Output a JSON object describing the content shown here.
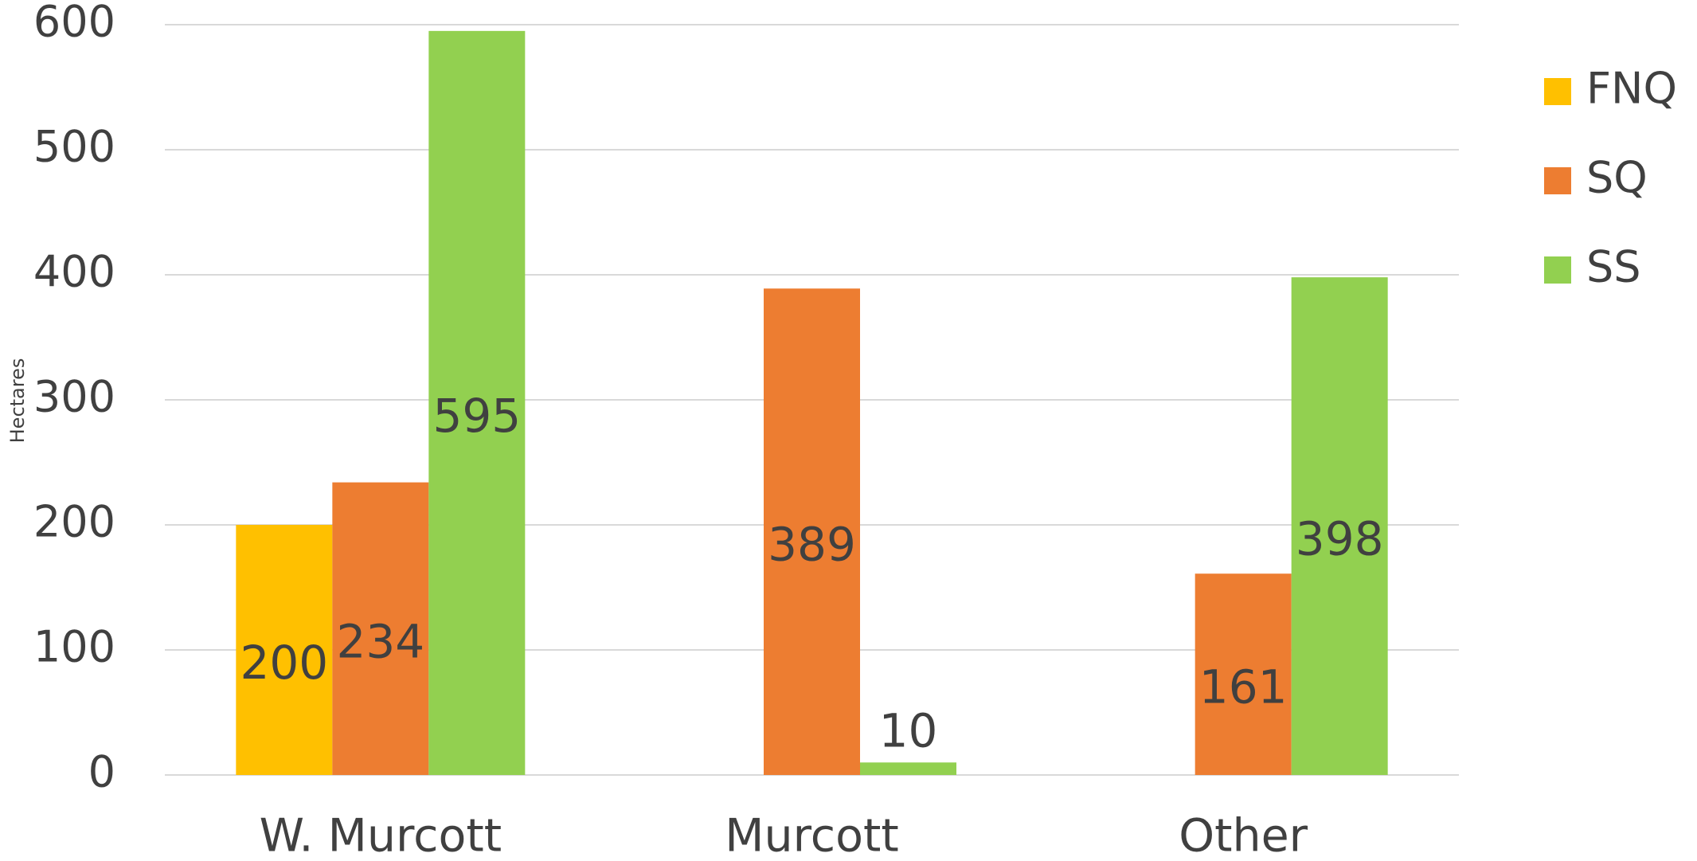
{
  "chart_data": {
    "type": "bar",
    "y_label": "Hectares",
    "categories": [
      "W. Murcott",
      "Murcott",
      "Other"
    ],
    "series": [
      {
        "name": "FNQ",
        "color": "#ffc000",
        "values": [
          200,
          null,
          null
        ]
      },
      {
        "name": "SQ",
        "color": "#ed7d31",
        "values": [
          234,
          389,
          161
        ]
      },
      {
        "name": "SS",
        "color": "#92d050",
        "values": [
          595,
          10,
          398
        ]
      }
    ],
    "ylim": [
      0,
      600
    ],
    "yticks": [
      0,
      100,
      200,
      300,
      400,
      500,
      600
    ],
    "grid": true,
    "legend": "right"
  }
}
